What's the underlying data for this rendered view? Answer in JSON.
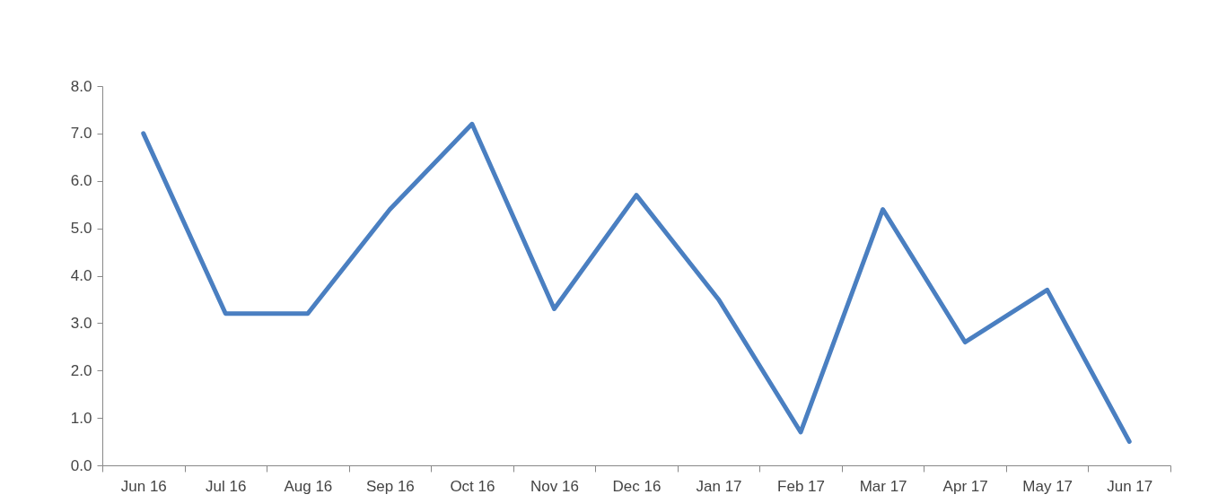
{
  "chart_data": {
    "type": "line",
    "categories": [
      "Jun 16",
      "Jul 16",
      "Aug 16",
      "Sep 16",
      "Oct 16",
      "Nov 16",
      "Dec 16",
      "Jan 17",
      "Feb 17",
      "Mar 17",
      "Apr 17",
      "May 17",
      "Jun 17"
    ],
    "values": [
      7.0,
      3.2,
      3.2,
      5.4,
      7.2,
      3.3,
      5.7,
      3.5,
      0.7,
      5.4,
      2.6,
      3.7,
      0.5
    ],
    "color": "#4a7fc1",
    "ylim": [
      0,
      8
    ],
    "yticks": [
      {
        "value": 0,
        "label": "0.0"
      },
      {
        "value": 1,
        "label": "1.0"
      },
      {
        "value": 2,
        "label": "2.0"
      },
      {
        "value": 3,
        "label": "3.0"
      },
      {
        "value": 4,
        "label": "4.0"
      },
      {
        "value": 5,
        "label": "5.0"
      },
      {
        "value": 6,
        "label": "6.0"
      },
      {
        "value": 7,
        "label": "7.0"
      },
      {
        "value": 8,
        "label": "8.0"
      }
    ]
  }
}
